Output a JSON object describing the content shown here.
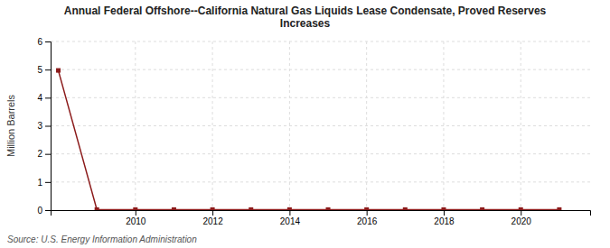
{
  "chart_data": {
    "type": "line",
    "title": "Annual Federal Offshore--California Natural Gas Liquids Lease Condensate, Proved Reserves\nIncreases",
    "ylabel": "Million Barrels",
    "source": "Source: U.S. Energy Information Administration",
    "x": [
      2008,
      2009,
      2010,
      2011,
      2012,
      2013,
      2014,
      2015,
      2016,
      2017,
      2018,
      2019,
      2020,
      2021
    ],
    "values": [
      4.97,
      0.02,
      0.02,
      0.02,
      0.02,
      0.02,
      0.02,
      0.02,
      0.02,
      0.02,
      0.02,
      0.02,
      0.02,
      0.02
    ],
    "color": "#8b1a1a",
    "marker": "square",
    "xlim": [
      2007.8,
      2021.8
    ],
    "ylim": [
      0,
      6
    ],
    "xticks": [
      2010,
      2012,
      2014,
      2016,
      2018,
      2020
    ],
    "yticks": [
      0,
      1,
      2,
      3,
      4,
      5,
      6
    ],
    "grid": true
  }
}
